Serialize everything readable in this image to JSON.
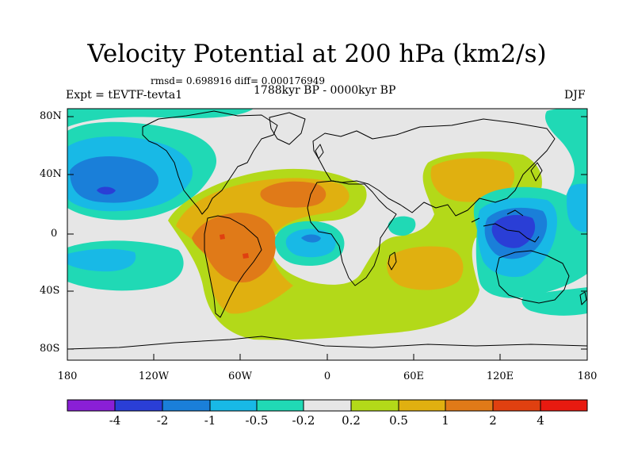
{
  "title": "Velocity Potential at 200 hPa (km2/s)",
  "stats": "rmsd= 0.698916 diff= 0.000176949",
  "period": "1788kyr BP - 0000kyr BP",
  "experiment": "Expt = tEVTF-tevta1",
  "season": "DJF",
  "lat_labels": [
    "80N",
    "40N",
    "0",
    "40S",
    "80S"
  ],
  "lon_labels": [
    "180",
    "120W",
    "60W",
    "0",
    "60E",
    "120E",
    "180"
  ],
  "colorbar": {
    "labels": [
      "-4",
      "-2",
      "-1",
      "-0.5",
      "-0.2",
      "0.2",
      "0.5",
      "1",
      "2",
      "4"
    ],
    "colors": [
      "#8a1fd6",
      "#2a3ed6",
      "#1a7fd9",
      "#18b9e6",
      "#20d9b5",
      "#e6e6e6",
      "#b3d919",
      "#e0b010",
      "#e07a18",
      "#e04010",
      "#e81a10"
    ]
  }
}
